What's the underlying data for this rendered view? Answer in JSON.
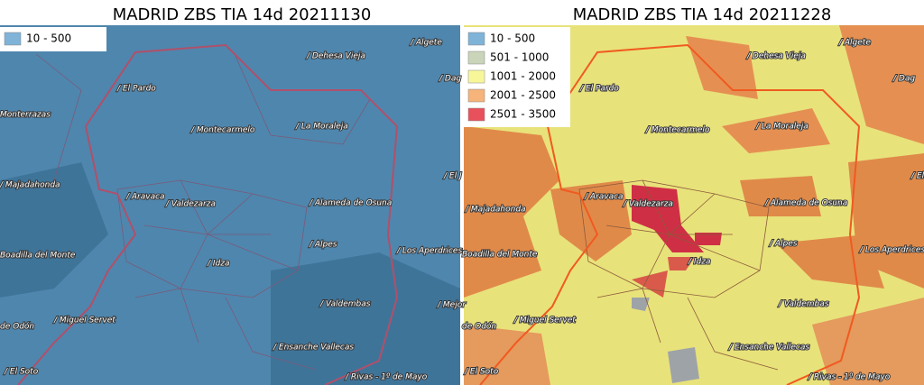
{
  "panels": [
    {
      "title": "MADRID ZBS TIA 14d 20211130",
      "legend": [
        {
          "label": "10 - 500",
          "color": "#7fb3d8"
        }
      ],
      "places": [
        "/ Algete",
        "/ Dehesa Vieja",
        "/ Dag",
        "/ El Pardo",
        "/ Montecarmelo",
        "/ La Moraleja",
        "Monterrazas",
        "/ El J",
        "/ Majadahonda",
        "/ Aravaca",
        "/ Valdezarza",
        "/ Alameda de Osuna",
        "/ Alpes",
        "/ Los Aperdrices",
        "Boadilla del Monte",
        "/ Idza",
        "/ Mejor",
        "/ Valdembas",
        "/ Miguel Servet",
        "de Odón",
        "/ Ensanche Vallecas",
        "/ El Soto",
        "/ Rivas - 1º de Mayo"
      ]
    },
    {
      "title": "MADRID ZBS TIA 14d 20211228",
      "legend": [
        {
          "label": "10 - 500",
          "color": "#7fb3d8"
        },
        {
          "label": "501 - 1000",
          "color": "#c9d4b8"
        },
        {
          "label": "1001 - 2000",
          "color": "#f7f79a"
        },
        {
          "label": "2001 - 2500",
          "color": "#f6b37a"
        },
        {
          "label": "2501 - 3500",
          "color": "#e8505b"
        }
      ],
      "places": [
        "/ Algete",
        "/ Dehesa Vieja",
        "/ Dag",
        "/ El Pardo",
        "/ Montecarmelo",
        "/ La Moraleja",
        "/ El J",
        "/ Majadahonda",
        "/ Aravaca",
        "/ Valdezarza",
        "/ Alameda de Osuna",
        "/ Alpes",
        "/ Los Aperdrices",
        "Boadilla del Monte",
        "/ Idza",
        "/ Valdembas",
        "/ Miguel Servet",
        "de Odón",
        "/ Ensanche Vallecas",
        "/ El Soto",
        "/ Rivas - 1º de Mayo"
      ]
    }
  ]
}
